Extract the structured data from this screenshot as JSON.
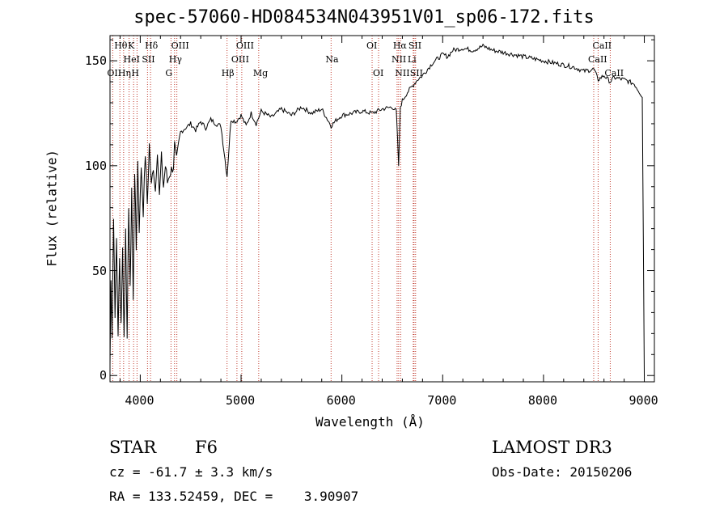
{
  "footer": {
    "object_class": "STAR",
    "subclass": "F6",
    "survey": "LAMOST DR3",
    "cz": "cz = -61.7 ± 3.3 km/s",
    "obs_date": "Obs-Date: 20150206",
    "radec": "RA = 133.52459, DEC =    3.90907"
  },
  "chart_data": {
    "type": "line",
    "title": "spec-57060-HD084534N043951V01_sp06-172.fits",
    "xlabel": "Wavelength (Å)",
    "ylabel": "Flux (relative)",
    "xlim": [
      3700,
      9100
    ],
    "ylim": [
      -3,
      162
    ],
    "xticks": [
      4000,
      5000,
      6000,
      7000,
      8000,
      9000
    ],
    "xtick_labels": [
      "4000",
      "5000",
      "6000",
      "7000",
      "8000",
      "9000"
    ],
    "yticks": [
      0,
      50,
      100,
      150
    ],
    "ytick_labels": [
      "0",
      "50",
      "100",
      "150"
    ],
    "series": [
      {
        "name": "flux",
        "x": [
          3700,
          3710,
          3720,
          3735,
          3750,
          3765,
          3780,
          3795,
          3810,
          3825,
          3840,
          3855,
          3870,
          3885,
          3900,
          3915,
          3930,
          3945,
          3960,
          3975,
          3990,
          4010,
          4030,
          4050,
          4070,
          4090,
          4110,
          4130,
          4150,
          4170,
          4190,
          4210,
          4230,
          4250,
          4270,
          4290,
          4310,
          4330,
          4340,
          4360,
          4400,
          4450,
          4500,
          4550,
          4600,
          4650,
          4700,
          4750,
          4800,
          4861,
          4900,
          4950,
          5000,
          5050,
          5100,
          5150,
          5200,
          5300,
          5400,
          5500,
          5600,
          5700,
          5800,
          5893,
          5950,
          6000,
          6100,
          6200,
          6300,
          6400,
          6500,
          6540,
          6563,
          6580,
          6600,
          6650,
          6700,
          6750,
          6800,
          6850,
          6900,
          6950,
          7000,
          7050,
          7100,
          7200,
          7300,
          7400,
          7500,
          7600,
          7700,
          7800,
          7900,
          8000,
          8100,
          8200,
          8300,
          8400,
          8500,
          8542,
          8600,
          8662,
          8700,
          8800,
          8900,
          8980,
          9000
        ],
        "values": [
          5,
          45,
          20,
          75,
          30,
          65,
          20,
          55,
          25,
          60,
          18,
          72,
          15,
          82,
          40,
          90,
          35,
          98,
          60,
          102,
          70,
          100,
          78,
          106,
          82,
          110,
          90,
          100,
          88,
          108,
          85,
          104,
          90,
          100,
          92,
          96,
          98,
          100,
          110,
          102,
          116,
          118,
          120,
          117,
          121,
          118,
          122,
          120,
          119,
          95,
          122,
          121,
          124,
          119,
          125,
          120,
          126,
          123,
          127,
          124,
          128,
          125,
          127,
          119,
          122,
          124,
          125,
          126,
          125,
          127,
          128,
          126,
          100,
          128,
          131,
          135,
          138,
          141,
          143,
          146,
          149,
          151,
          153,
          152,
          155,
          156,
          155,
          157,
          155,
          154,
          153,
          152,
          151,
          150,
          149,
          148,
          147,
          145,
          146,
          141,
          143,
          140,
          142,
          141,
          139,
          133,
          0
        ]
      }
    ],
    "lines": [
      {
        "name": "H-theta",
        "wavelength": 3798,
        "label": "Hθ",
        "row": 1
      },
      {
        "name": "O-II-3727",
        "wavelength": 3727,
        "label": "OII",
        "row": 3
      },
      {
        "name": "H-eta",
        "wavelength": 3835,
        "label": "Hη",
        "row": 3
      },
      {
        "name": "He-I",
        "wavelength": 3889,
        "label": "HeI",
        "row": 2
      },
      {
        "name": "Ca-K",
        "wavelength": 3934,
        "label": "K",
        "row": 1
      },
      {
        "name": "Ca-H",
        "wavelength": 3968,
        "label": "H",
        "row": 3
      },
      {
        "name": "S-II-4072",
        "wavelength": 4072,
        "label": "SII",
        "row": 2
      },
      {
        "name": "H-delta",
        "wavelength": 4102,
        "label": "Hδ",
        "row": 1
      },
      {
        "name": "H-gamma",
        "wavelength": 4340,
        "label": "Hγ",
        "row": 2
      },
      {
        "name": "G-band",
        "wavelength": 4305,
        "label": "G",
        "row": 3
      },
      {
        "name": "O-III-4363",
        "wavelength": 4363,
        "label": "OIII",
        "row": 1
      },
      {
        "name": "H-beta",
        "wavelength": 4861,
        "label": "Hβ",
        "row": 3
      },
      {
        "name": "O-III-4959",
        "wavelength": 4959,
        "label": "OIII",
        "row": 2
      },
      {
        "name": "O-III-5007",
        "wavelength": 5007,
        "label": "OIII",
        "row": 1
      },
      {
        "name": "Mg",
        "wavelength": 5175,
        "label": "Mg",
        "row": 3
      },
      {
        "name": "Na",
        "wavelength": 5893,
        "label": "Na",
        "row": 2
      },
      {
        "name": "O-I-6300",
        "wavelength": 6300,
        "label": "OI",
        "row": 1
      },
      {
        "name": "O-I-6364",
        "wavelength": 6364,
        "label": "OI",
        "row": 3
      },
      {
        "name": "N-II-6548",
        "wavelength": 6548,
        "label": "NII",
        "row": 2
      },
      {
        "name": "H-alpha",
        "wavelength": 6563,
        "label": "Hα",
        "row": 1
      },
      {
        "name": "N-II-6583",
        "wavelength": 6583,
        "label": "NII",
        "row": 3
      },
      {
        "name": "Li",
        "wavelength": 6708,
        "label": "Li",
        "row": 2
      },
      {
        "name": "S-II-6716",
        "wavelength": 6716,
        "label": "SII",
        "row": 1
      },
      {
        "name": "S-II-6731",
        "wavelength": 6731,
        "label": "SII",
        "row": 3
      },
      {
        "name": "Ca-II-8498",
        "wavelength": 8498,
        "label": "CaII",
        "row": 2
      },
      {
        "name": "Ca-II-8542",
        "wavelength": 8542,
        "label": "CaII",
        "row": 1
      },
      {
        "name": "Ca-II-8662",
        "wavelength": 8662,
        "label": "CaII",
        "row": 3
      }
    ]
  }
}
